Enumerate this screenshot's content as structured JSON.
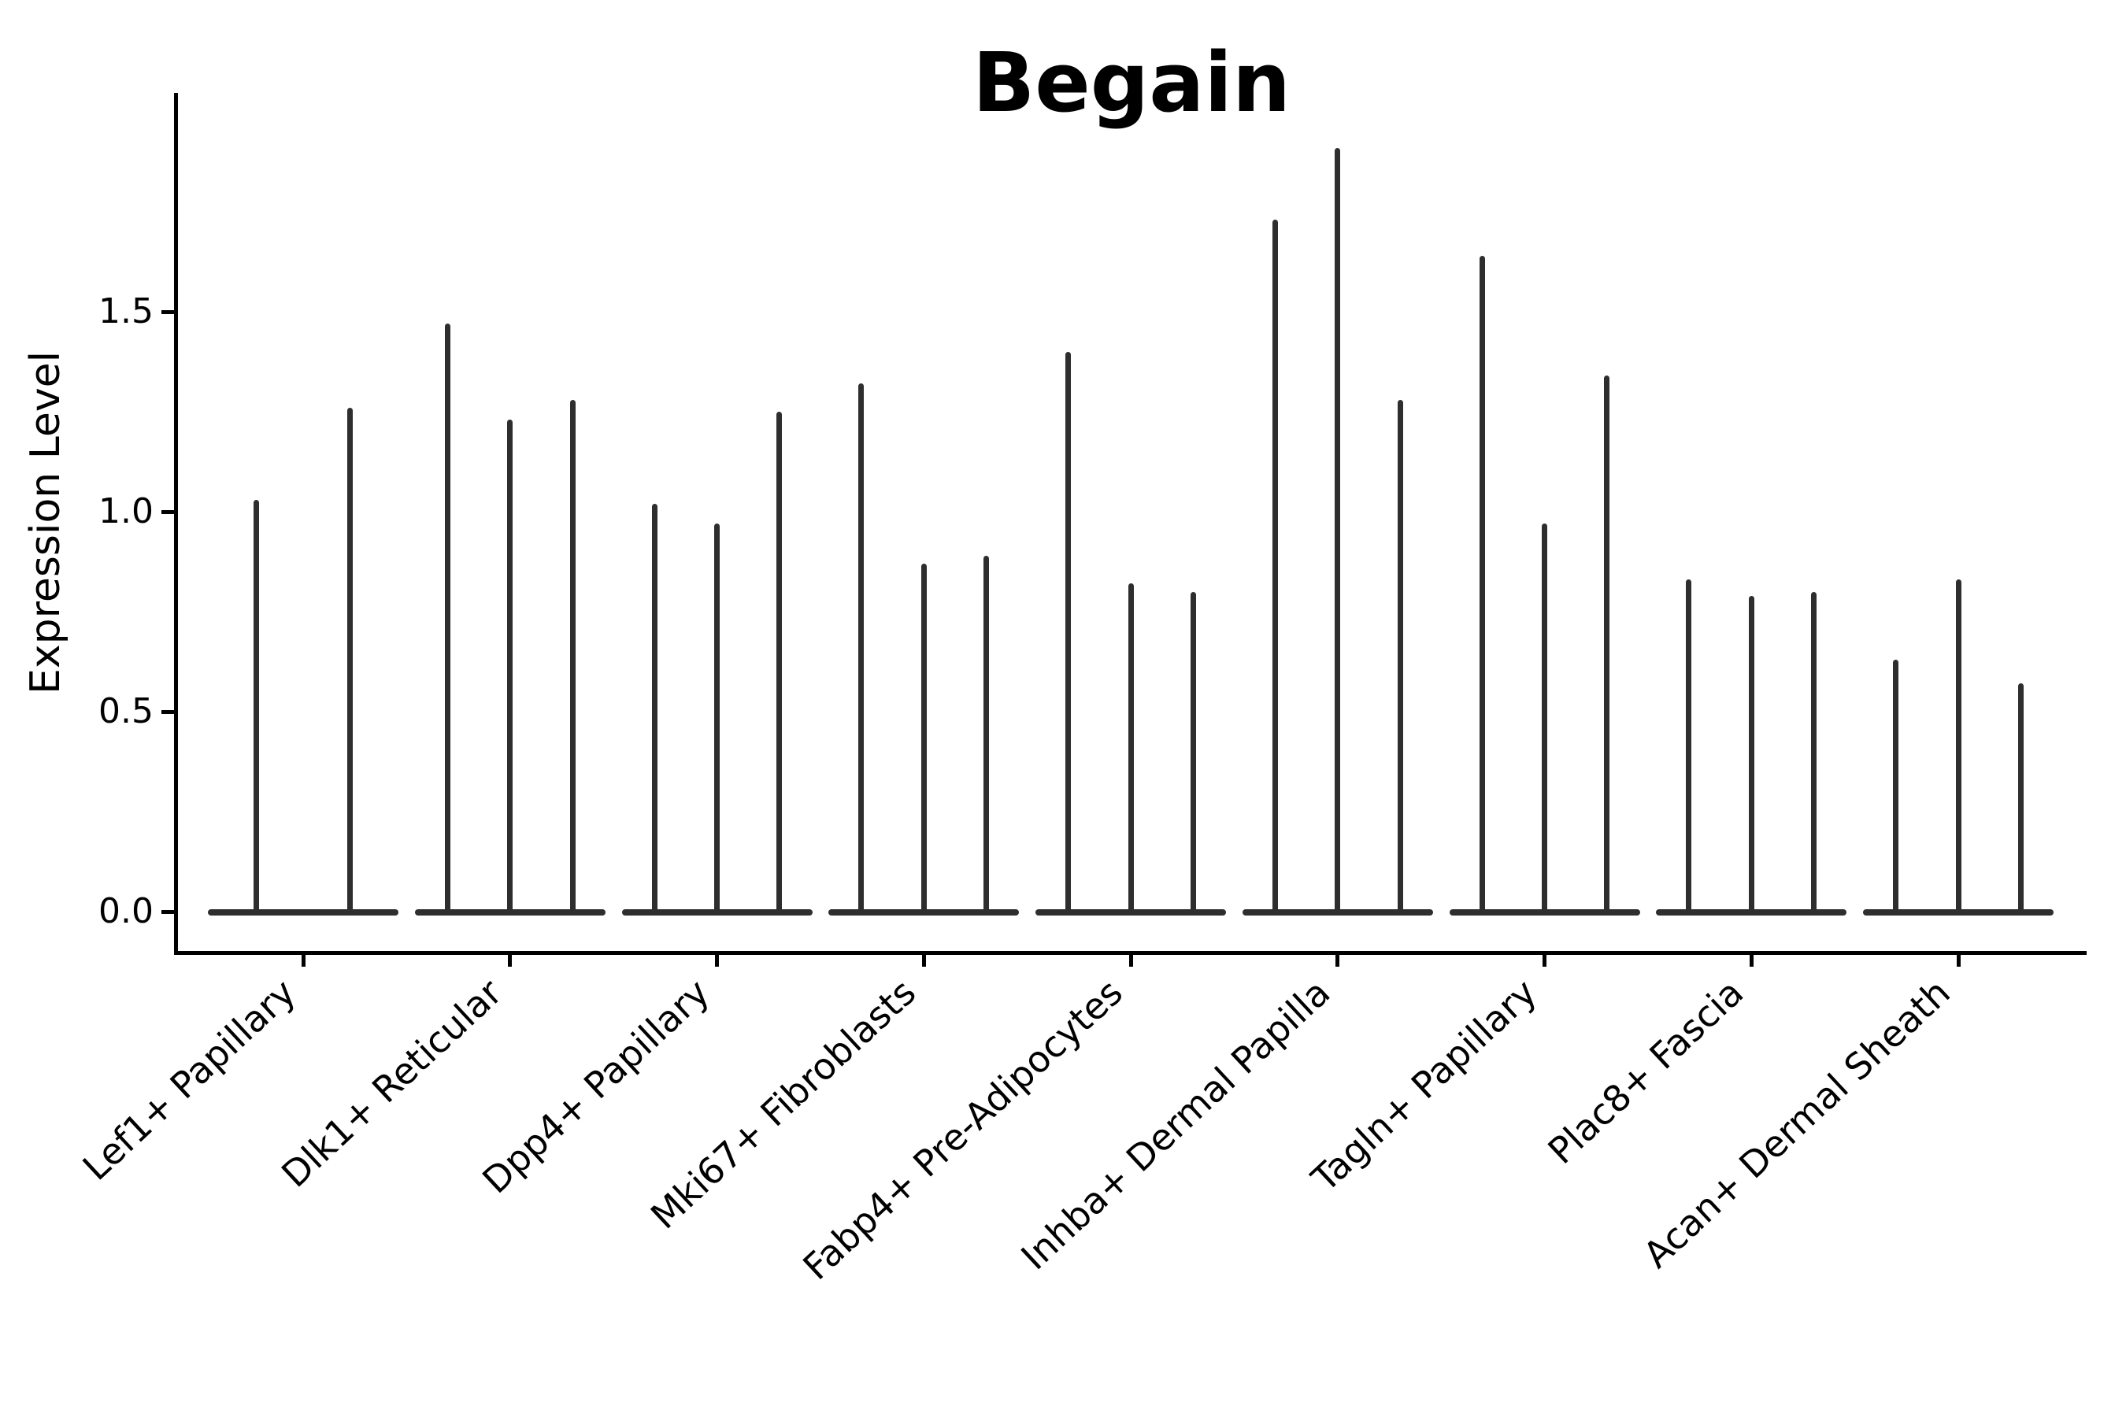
{
  "title": "Begain",
  "chart_data": {
    "type": "violin",
    "title": "Begain",
    "xlabel": "",
    "ylabel": "Expression Level",
    "categories": [
      "Lef1+ Papillary",
      "Dlk1+ Reticular",
      "Dpp4+ Papillary",
      "Mki67+ Fibroblasts",
      "Fabp4+ Pre-Adipocytes",
      "Inhba+ Dermal Papilla",
      "Tagln+ Papillary",
      "Plac8+ Fascia",
      "Acan+ Dermal Sheath"
    ],
    "series": [
      {
        "category": "Lef1+ Papillary",
        "violin_max_values": [
          1.03,
          1.26
        ]
      },
      {
        "category": "Dlk1+ Reticular",
        "violin_max_values": [
          1.47,
          1.23,
          1.28
        ]
      },
      {
        "category": "Dpp4+ Papillary",
        "violin_max_values": [
          1.02,
          0.97,
          1.25
        ]
      },
      {
        "category": "Mki67+ Fibroblasts",
        "violin_max_values": [
          1.32,
          0.87,
          0.89
        ]
      },
      {
        "category": "Fabp4+ Pre-Adipocytes",
        "violin_max_values": [
          1.4,
          0.82,
          0.8
        ]
      },
      {
        "category": "Inhba+ Dermal Papilla",
        "violin_max_values": [
          1.73,
          1.91,
          1.28
        ]
      },
      {
        "category": "Tagln+ Papillary",
        "violin_max_values": [
          1.64,
          0.97,
          1.34
        ]
      },
      {
        "category": "Plac8+ Fascia",
        "violin_max_values": [
          0.83,
          0.79,
          0.8
        ]
      },
      {
        "category": "Acan+ Dermal Sheath",
        "violin_max_values": [
          0.63,
          0.83,
          0.57
        ]
      }
    ],
    "yticks": [
      0.0,
      0.5,
      1.0,
      1.5
    ],
    "ytick_labels": [
      "0.0",
      "0.5",
      "1.0",
      "1.5"
    ],
    "ylim": [
      -0.1,
      2.05
    ],
    "grid": false,
    "legend": "none",
    "violin_color": "#2e2e2e",
    "axis_color": "#000000",
    "baseline_value": 0.0
  }
}
